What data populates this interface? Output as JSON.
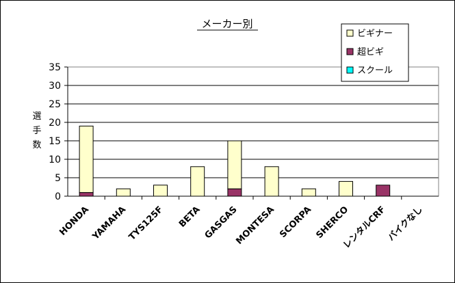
{
  "chart_data": {
    "type": "bar",
    "stacked": true,
    "title": "メーカー別",
    "ylabel": [
      "選",
      "手",
      "数"
    ],
    "xlabel": "",
    "categories": [
      "HONDA",
      "YAMAHA",
      "TYS125F",
      "BETA",
      "GASGAS",
      "MONTESA",
      "SCORPA",
      "SHERCO",
      "レンタルCRF",
      "バイクなし"
    ],
    "series": [
      {
        "name": "ビギナー",
        "color": "#ffffcc",
        "values": [
          18,
          2,
          3,
          8,
          13,
          8,
          2,
          4,
          0,
          0
        ]
      },
      {
        "name": "超ビギ",
        "color": "#993366",
        "values": [
          1,
          0,
          0,
          0,
          2,
          0,
          0,
          0,
          3,
          0
        ]
      },
      {
        "name": "スクール",
        "color": "#00ffff",
        "values": [
          0,
          0,
          0,
          0,
          0,
          0,
          0,
          0,
          0,
          0
        ]
      }
    ],
    "ylim": [
      0,
      35
    ],
    "yticks": [
      0,
      5,
      10,
      15,
      20,
      25,
      30,
      35
    ],
    "grid": true,
    "legend_position": "top-right",
    "plot_background": "#ffffff",
    "gridline_color": "#000000"
  }
}
